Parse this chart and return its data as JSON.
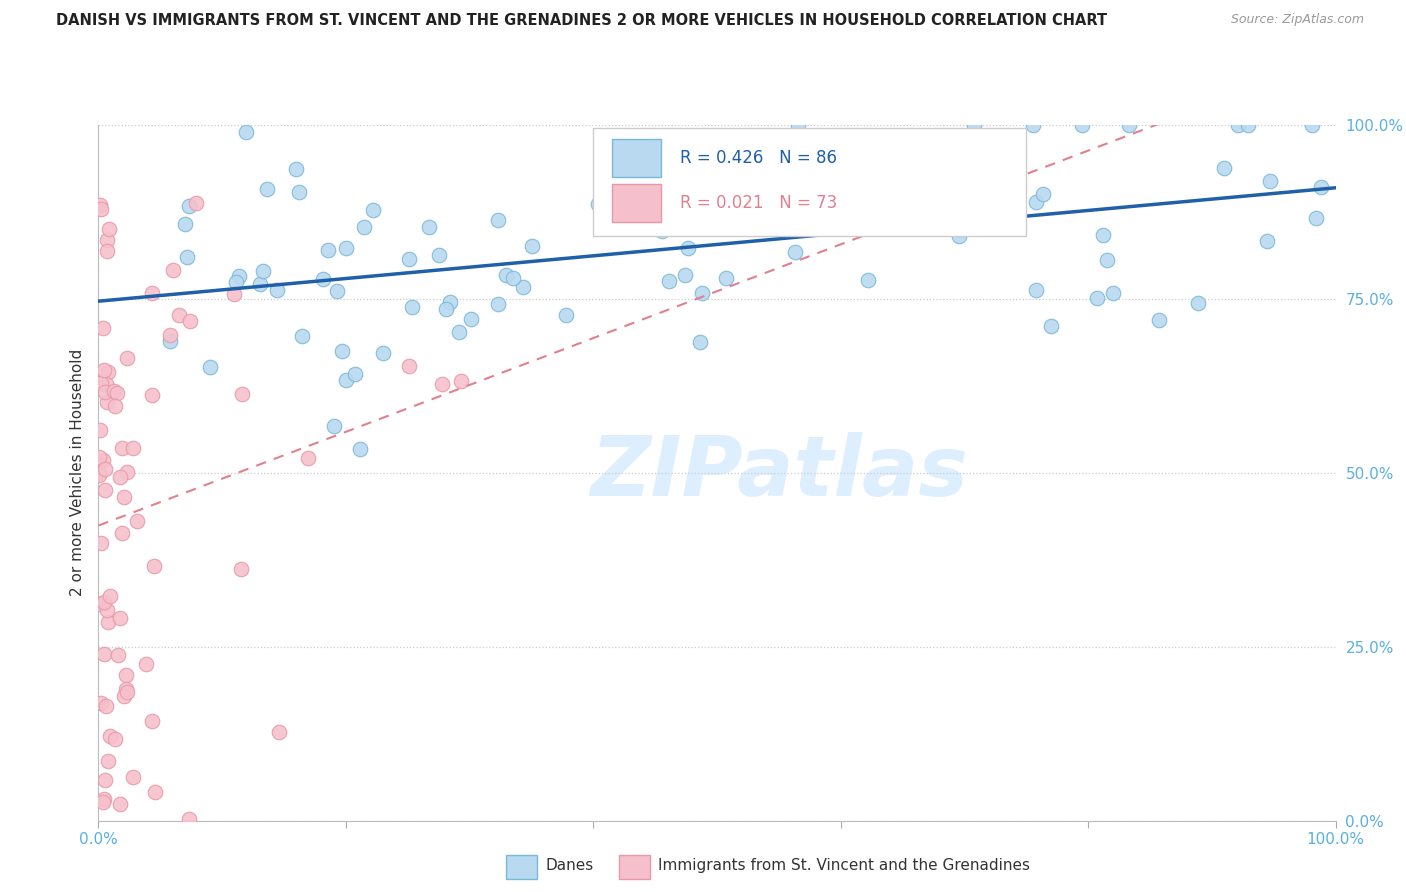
{
  "title": "DANISH VS IMMIGRANTS FROM ST. VINCENT AND THE GRENADINES 2 OR MORE VEHICLES IN HOUSEHOLD CORRELATION CHART",
  "source": "Source: ZipAtlas.com",
  "ylabel": "2 or more Vehicles in Household",
  "R_danes": 0.426,
  "N_danes": 86,
  "R_immigrants": 0.021,
  "N_immigrants": 73,
  "xlim": [
    0.0,
    1.0
  ],
  "ylim": [
    0.0,
    1.0
  ],
  "danes_color_edge": "#7ab8d9",
  "danes_color_fill": "#b8d9f0",
  "immigrants_color_edge": "#e898a8",
  "immigrants_color_fill": "#f5c0cc",
  "trend_danes_color": "#2060a8",
  "trend_immigrants_color": "#e08090",
  "watermark_color": "#ddeeff",
  "watermark_text": "ZIPatlas",
  "grid_color": "#cccccc",
  "tick_color": "#5ab0e0",
  "title_color": "#222222",
  "source_color": "#999999",
  "ylabel_color": "#333333"
}
